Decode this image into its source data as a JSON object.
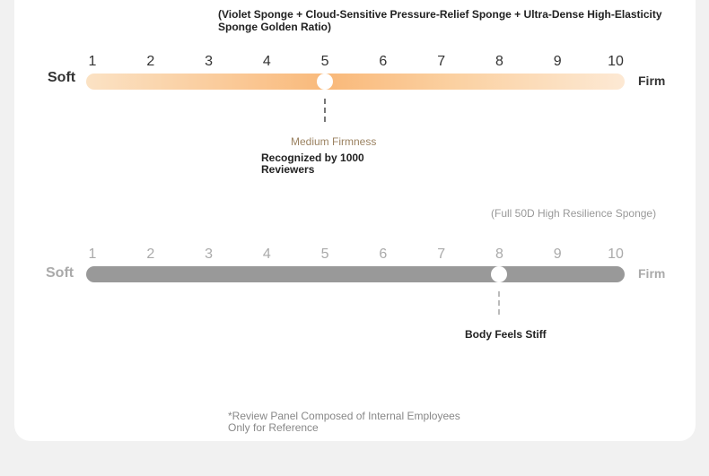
{
  "top_note": "(Violet Sponge + Cloud-Sensitive Pressure-Relief Sponge + Ultra-Dense High-Elasticity Sponge Golden Ratio)",
  "scale_numbers": [
    "1",
    "2",
    "3",
    "4",
    "5",
    "6",
    "7",
    "8",
    "9",
    "10"
  ],
  "scale1": {
    "left_label": "Soft",
    "right_label": "Firm",
    "value": 5,
    "marker_label": "Medium Firmness",
    "marker_note": "Recognized by 1000 Reviewers",
    "colors": {
      "bar_start": "#fbe2c4",
      "bar_mid": "#f9b97a",
      "bar_end": "#fde9d4",
      "marker_label": "#9b8261"
    }
  },
  "scale2": {
    "note": "(Full 50D High Resilience Sponge)",
    "left_label": "Soft",
    "right_label": "Firm",
    "value": 8,
    "marker_note": "Body Feels Stiff",
    "colors": {
      "bar": "#999999"
    }
  },
  "footnote": "*Review Panel Composed of Internal Employees Only for Reference"
}
